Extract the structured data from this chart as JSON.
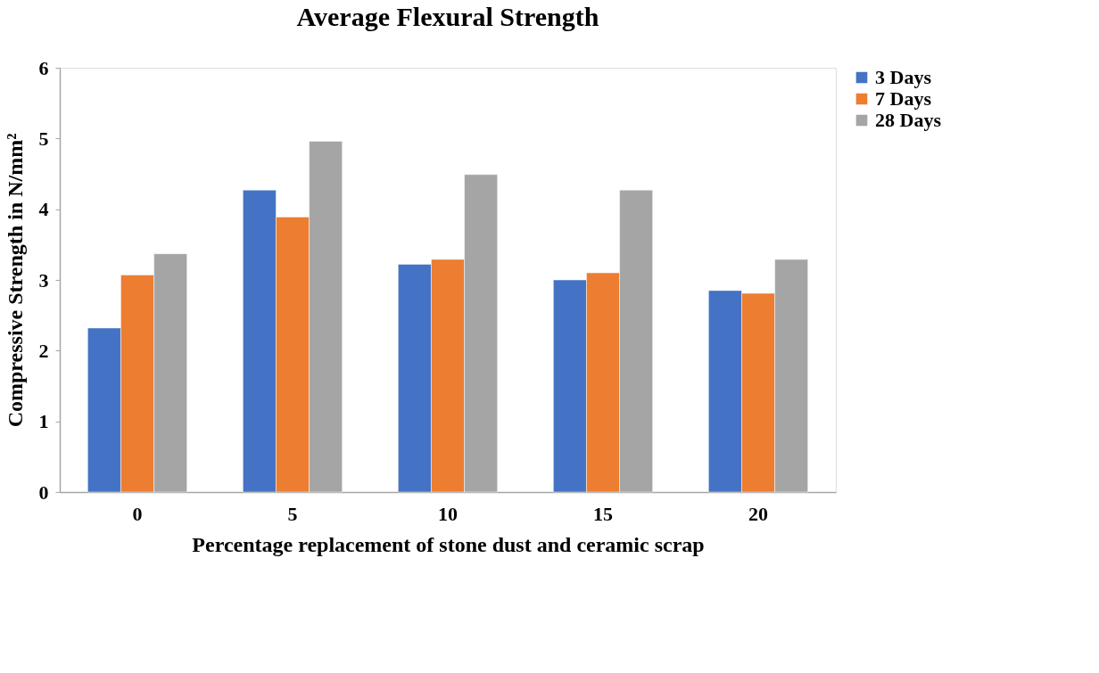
{
  "chart_data": {
    "type": "bar",
    "title": "Average Flexural Strength",
    "xlabel": "Percentage replacement of stone dust and ceramic scrap",
    "ylabel": "Compressive Strength in N/mm²",
    "categories": [
      "0",
      "5",
      "10",
      "15",
      "20"
    ],
    "series": [
      {
        "name": "3 Days",
        "color": "#4472c4",
        "values": [
          2.32,
          4.27,
          3.22,
          3.0,
          2.85
        ]
      },
      {
        "name": "7 Days",
        "color": "#ed7d31",
        "values": [
          3.07,
          3.89,
          3.29,
          3.1,
          2.81
        ]
      },
      {
        "name": "28 Days",
        "color": "#a5a5a5",
        "values": [
          3.37,
          4.96,
          4.49,
          4.27,
          3.29
        ]
      }
    ],
    "ylim": [
      0,
      6
    ],
    "yticks": [
      0,
      1,
      2,
      3,
      4,
      5,
      6
    ],
    "grid": false,
    "legend": "right"
  }
}
